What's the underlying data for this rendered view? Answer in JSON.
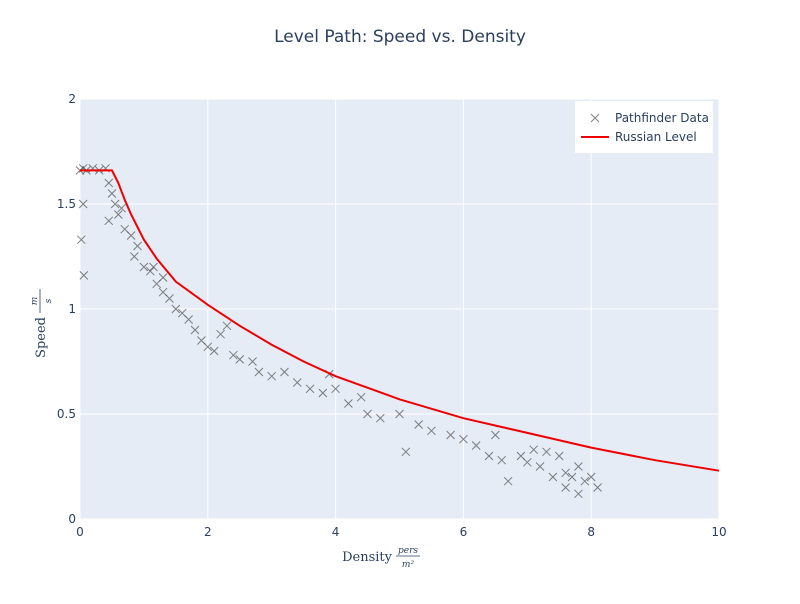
{
  "chart_data": {
    "type": "scatter",
    "title": "Level Path: Speed vs. Density",
    "xlabel": {
      "text": "Density",
      "unit_num": "pers",
      "unit_den": "m²"
    },
    "ylabel": {
      "text": "Speed",
      "unit_num": "m",
      "unit_den": "s"
    },
    "xlim": [
      0,
      10
    ],
    "xticks": [
      0,
      2,
      4,
      6,
      8,
      10
    ],
    "ylim": [
      0,
      2
    ],
    "yticks": [
      0,
      0.5,
      1,
      1.5,
      2
    ],
    "grid": true,
    "legend": "top-right",
    "series": [
      {
        "name": "Pathfinder Data",
        "mode": "markers",
        "color": "#555555",
        "x": [
          0,
          0.05,
          0.1,
          0.02,
          0.05,
          0.06,
          0.2,
          0.3,
          0.4,
          0.45,
          0.5,
          0.55,
          0.45,
          0.6,
          0.7,
          0.65,
          0.8,
          0.9,
          0.85,
          1.0,
          1.1,
          1.2,
          1.15,
          1.3,
          1.4,
          1.5,
          1.6,
          1.7,
          1.8,
          1.9,
          2.0,
          2.1,
          2.2,
          2.4,
          2.5,
          2.7,
          2.8,
          3.0,
          3.2,
          3.4,
          3.6,
          3.8,
          4.0,
          4.2,
          4.5,
          4.7,
          5.0,
          5.1,
          5.3,
          5.5,
          5.8,
          6.0,
          6.2,
          6.4,
          6.6,
          6.7,
          6.9,
          7.0,
          7.2,
          7.3,
          7.4,
          7.5,
          7.6,
          7.6,
          7.7,
          7.8,
          7.8,
          7.9,
          8.0,
          8.1,
          7.1,
          6.5,
          4.4,
          3.9,
          2.3,
          1.3
        ],
        "values": [
          1.66,
          1.67,
          1.66,
          1.33,
          1.5,
          1.16,
          1.67,
          1.66,
          1.67,
          1.6,
          1.55,
          1.5,
          1.42,
          1.45,
          1.38,
          1.48,
          1.35,
          1.3,
          1.25,
          1.2,
          1.18,
          1.12,
          1.2,
          1.08,
          1.05,
          1.0,
          0.98,
          0.95,
          0.9,
          0.85,
          0.82,
          0.8,
          0.88,
          0.78,
          0.76,
          0.75,
          0.7,
          0.68,
          0.7,
          0.65,
          0.62,
          0.6,
          0.62,
          0.55,
          0.5,
          0.48,
          0.5,
          0.32,
          0.45,
          0.42,
          0.4,
          0.38,
          0.35,
          0.3,
          0.28,
          0.18,
          0.3,
          0.27,
          0.25,
          0.32,
          0.2,
          0.3,
          0.22,
          0.15,
          0.2,
          0.25,
          0.12,
          0.18,
          0.2,
          0.15,
          0.33,
          0.4,
          0.58,
          0.69,
          0.92,
          1.15
        ]
      },
      {
        "name": "Russian Level",
        "mode": "lines",
        "color": "#ee0000",
        "x": [
          0,
          0.5,
          0.6,
          0.7,
          0.8,
          1,
          1.2,
          1.5,
          2,
          2.5,
          3,
          3.5,
          4,
          5,
          6,
          7,
          8,
          9,
          10
        ],
        "values": [
          1.66,
          1.66,
          1.6,
          1.52,
          1.45,
          1.33,
          1.24,
          1.13,
          1.02,
          0.92,
          0.83,
          0.75,
          0.68,
          0.57,
          0.48,
          0.41,
          0.34,
          0.28,
          0.23
        ]
      }
    ]
  }
}
